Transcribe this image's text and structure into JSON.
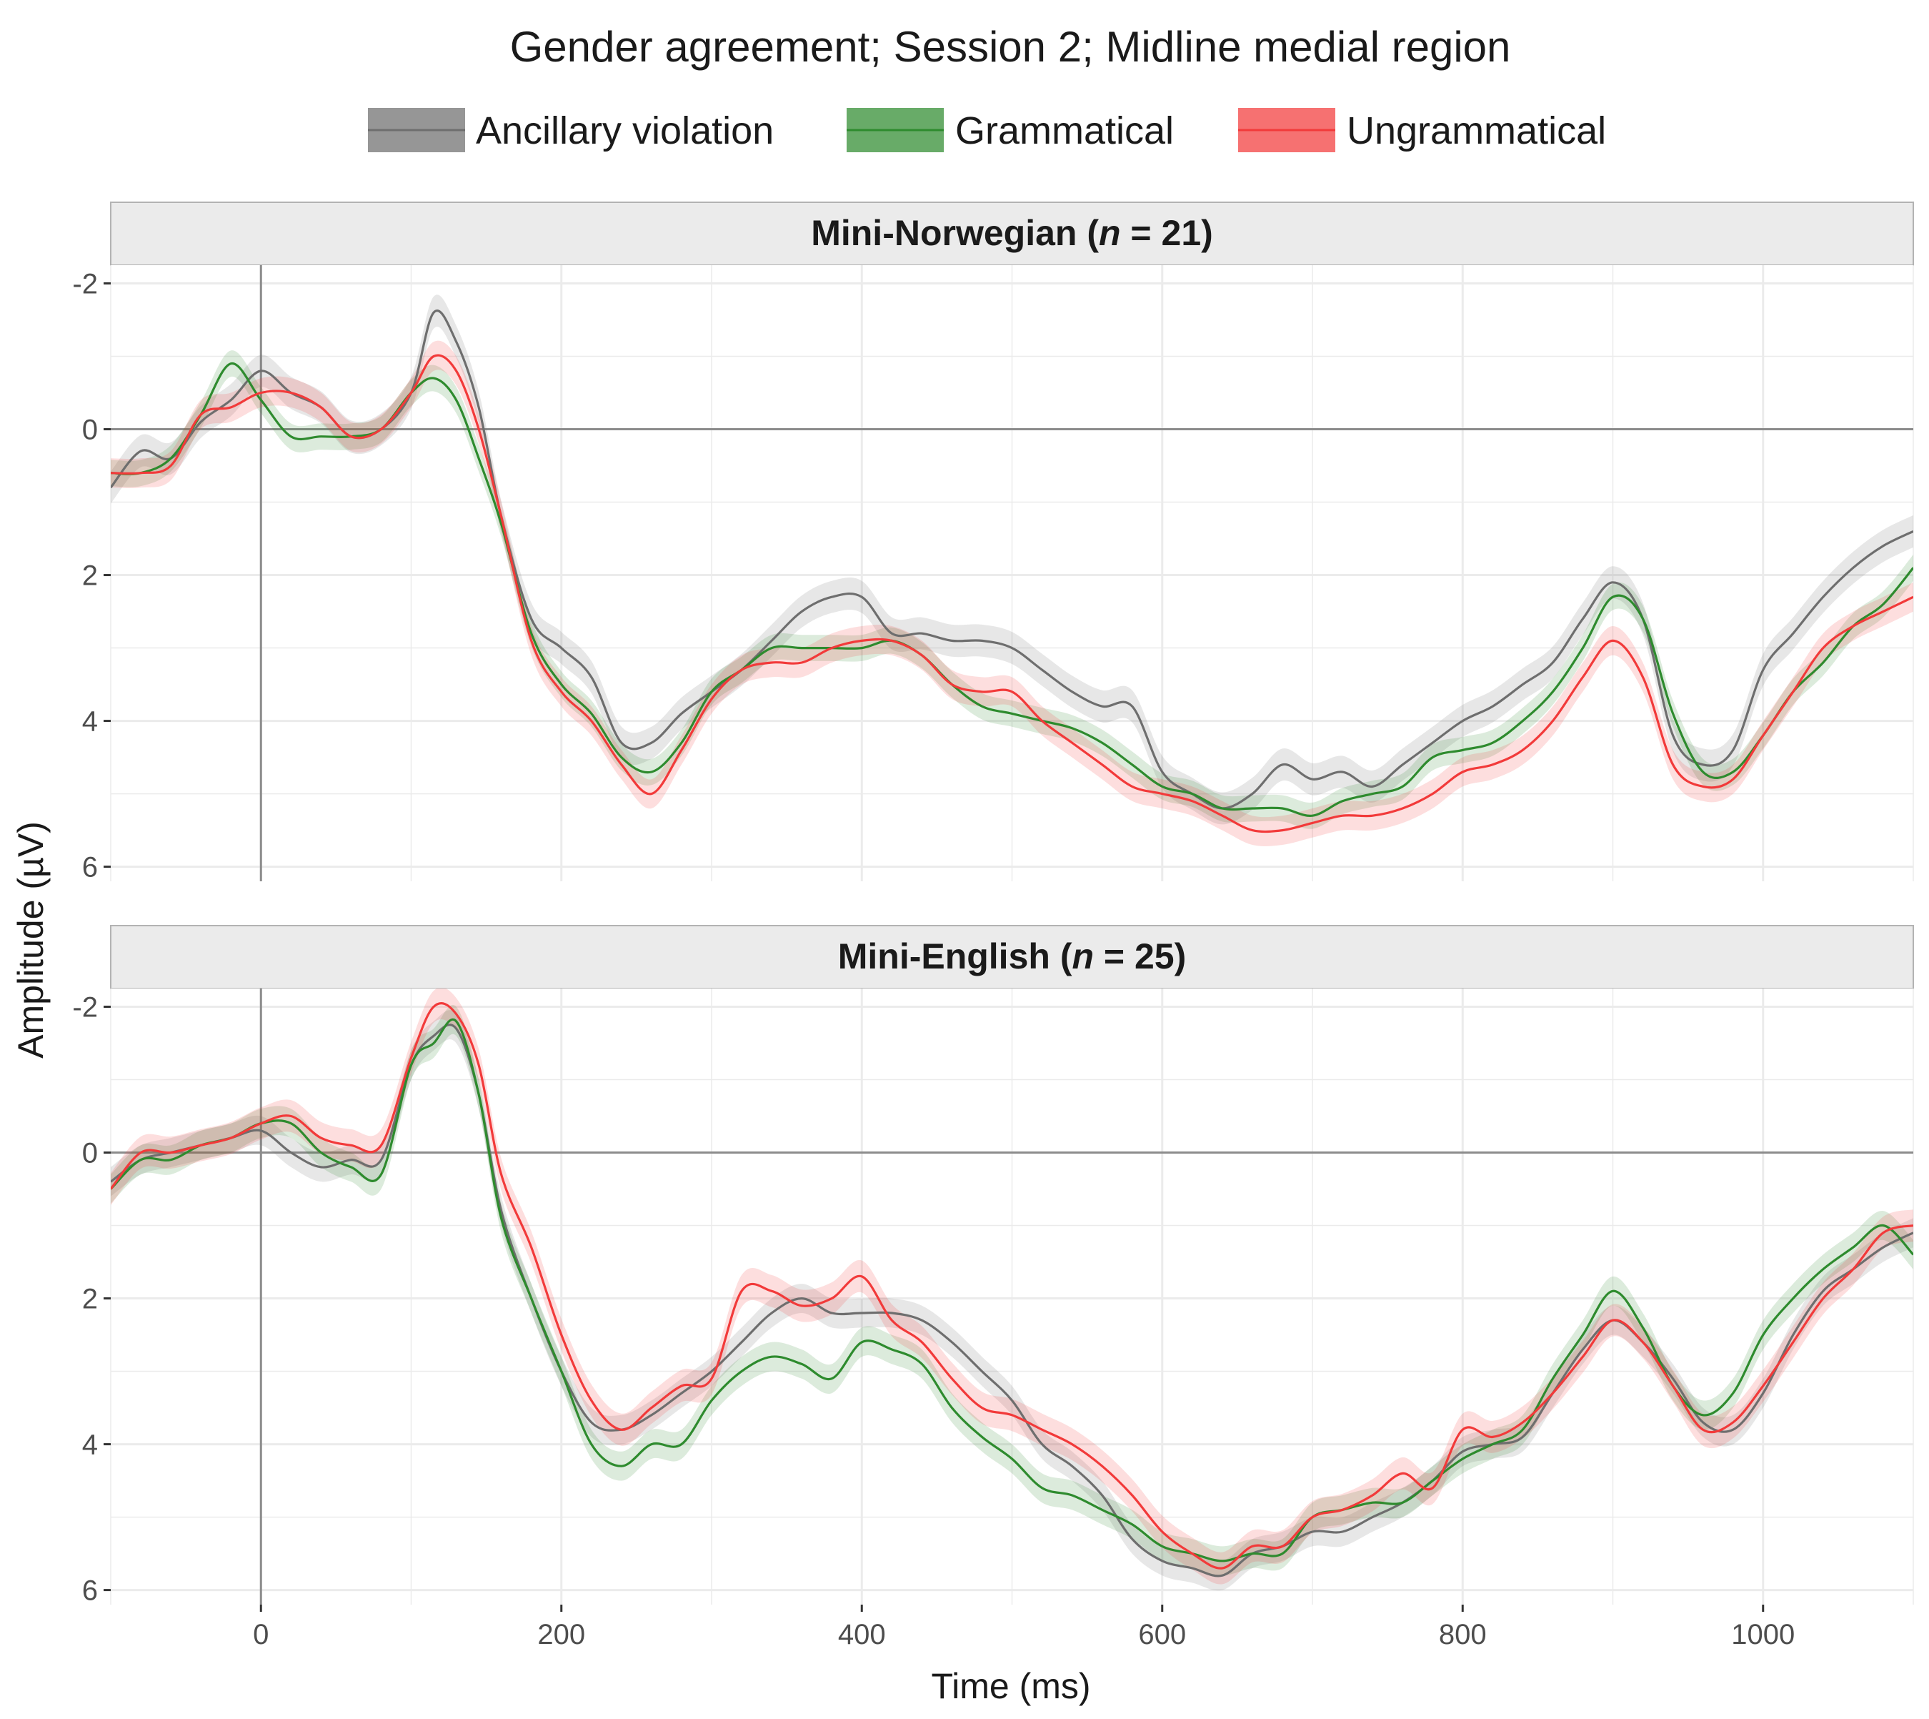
{
  "colors": {
    "ancillary": "#6e6e6e",
    "grammatical": "#2e8b2e",
    "ungrammatical": "#f23a3a",
    "strip_bg": "#ebebeb",
    "grid": "#ebebeb"
  },
  "chart_data": {
    "type": "line",
    "title": "Gender agreement; Session 2; Midline medial region",
    "xlabel": "Time (ms)",
    "ylabel": "Amplitude (µV)",
    "xlim": [
      -100,
      1100
    ],
    "ylim": [
      -2.25,
      6.2
    ],
    "y_reversed": true,
    "x_ticks": [
      0,
      200,
      400,
      600,
      800,
      1000
    ],
    "x_tick_labels": [
      "0",
      "200",
      "400",
      "600",
      "800",
      "1000"
    ],
    "y_ticks": [
      -2,
      0,
      2,
      4,
      6
    ],
    "y_tick_labels": [
      "-2",
      "0",
      "2",
      "4",
      "6"
    ],
    "grid": true,
    "legend_position": "top",
    "legend": [
      {
        "key": "ancillary",
        "label": "Ancillary violation"
      },
      {
        "key": "grammatical",
        "label": "Grammatical"
      },
      {
        "key": "ungrammatical",
        "label": "Ungrammatical"
      }
    ],
    "panels": [
      {
        "strip_prefix": "Mini-Norwegian (",
        "strip_n": "n",
        "strip_suffix": " = 21)",
        "x": [
          -100,
          -80,
          -60,
          -40,
          -20,
          0,
          20,
          40,
          60,
          80,
          100,
          115,
          130,
          145,
          160,
          180,
          200,
          220,
          240,
          260,
          280,
          300,
          320,
          340,
          360,
          380,
          400,
          420,
          440,
          460,
          480,
          500,
          520,
          540,
          560,
          580,
          600,
          620,
          640,
          660,
          680,
          700,
          720,
          740,
          760,
          780,
          800,
          820,
          840,
          860,
          880,
          900,
          920,
          940,
          960,
          980,
          1000,
          1020,
          1040,
          1060,
          1080,
          1100
        ],
        "series": [
          {
            "key": "ancillary",
            "ci": 0.22,
            "values": [
              0.8,
              0.3,
              0.4,
              -0.1,
              -0.4,
              -0.8,
              -0.5,
              -0.3,
              0.1,
              0.0,
              -0.5,
              -1.6,
              -1.2,
              -0.3,
              1.2,
              2.6,
              3.0,
              3.4,
              4.3,
              4.3,
              3.9,
              3.6,
              3.3,
              2.9,
              2.5,
              2.3,
              2.3,
              2.8,
              2.8,
              2.9,
              2.9,
              3.0,
              3.3,
              3.6,
              3.8,
              3.8,
              4.7,
              5.0,
              5.2,
              5.0,
              4.6,
              4.8,
              4.7,
              4.9,
              4.6,
              4.3,
              4.0,
              3.8,
              3.5,
              3.2,
              2.6,
              2.1,
              2.6,
              4.2,
              4.6,
              4.4,
              3.3,
              2.8,
              2.3,
              1.9,
              1.6,
              1.4
            ]
          },
          {
            "key": "grammatical",
            "ci": 0.18,
            "values": [
              0.6,
              0.6,
              0.4,
              -0.2,
              -0.9,
              -0.4,
              0.1,
              0.1,
              0.1,
              0.0,
              -0.5,
              -0.7,
              -0.4,
              0.4,
              1.3,
              2.8,
              3.5,
              3.9,
              4.5,
              4.7,
              4.3,
              3.6,
              3.3,
              3.0,
              3.0,
              3.0,
              3.0,
              2.9,
              3.1,
              3.5,
              3.8,
              3.9,
              4.0,
              4.1,
              4.3,
              4.6,
              4.9,
              5.0,
              5.2,
              5.2,
              5.2,
              5.3,
              5.1,
              5.0,
              4.9,
              4.5,
              4.4,
              4.3,
              4.0,
              3.6,
              3.0,
              2.3,
              2.6,
              3.9,
              4.7,
              4.7,
              4.2,
              3.6,
              3.2,
              2.7,
              2.4,
              1.9
            ]
          },
          {
            "key": "ungrammatical",
            "ci": 0.2,
            "values": [
              0.6,
              0.6,
              0.5,
              -0.2,
              -0.3,
              -0.5,
              -0.5,
              -0.3,
              0.1,
              0.0,
              -0.5,
              -1.0,
              -0.8,
              0.0,
              1.2,
              2.9,
              3.6,
              4.0,
              4.6,
              5.0,
              4.4,
              3.7,
              3.3,
              3.2,
              3.2,
              3.0,
              2.9,
              2.9,
              3.1,
              3.5,
              3.6,
              3.6,
              4.0,
              4.3,
              4.6,
              4.9,
              5.0,
              5.1,
              5.3,
              5.5,
              5.5,
              5.4,
              5.3,
              5.3,
              5.2,
              5.0,
              4.7,
              4.6,
              4.4,
              4.0,
              3.4,
              2.9,
              3.4,
              4.6,
              4.9,
              4.8,
              4.2,
              3.6,
              3.0,
              2.7,
              2.5,
              2.3
            ]
          }
        ]
      },
      {
        "strip_prefix": "Mini-English (",
        "strip_n": "n",
        "strip_suffix": " = 25)",
        "x": [
          -100,
          -80,
          -60,
          -40,
          -20,
          0,
          20,
          40,
          60,
          80,
          100,
          115,
          130,
          145,
          160,
          180,
          200,
          220,
          240,
          260,
          280,
          300,
          320,
          340,
          360,
          380,
          400,
          420,
          440,
          460,
          480,
          500,
          520,
          540,
          560,
          580,
          600,
          620,
          640,
          660,
          680,
          700,
          720,
          740,
          760,
          780,
          800,
          820,
          840,
          860,
          880,
          900,
          920,
          940,
          960,
          980,
          1000,
          1020,
          1040,
          1060,
          1080,
          1100
        ],
        "series": [
          {
            "key": "ancillary",
            "ci": 0.2,
            "values": [
              0.4,
              0.1,
              0.0,
              -0.1,
              -0.2,
              -0.3,
              0.0,
              0.2,
              0.1,
              0.1,
              -1.2,
              -1.6,
              -1.7,
              -0.8,
              0.8,
              2.0,
              3.0,
              3.7,
              3.8,
              3.6,
              3.3,
              3.0,
              2.6,
              2.2,
              2.0,
              2.2,
              2.2,
              2.2,
              2.3,
              2.6,
              3.0,
              3.4,
              4.0,
              4.3,
              4.7,
              5.3,
              5.6,
              5.7,
              5.8,
              5.5,
              5.4,
              5.2,
              5.2,
              5.0,
              4.8,
              4.5,
              4.1,
              4.0,
              3.9,
              3.3,
              2.7,
              2.3,
              2.6,
              3.1,
              3.7,
              3.8,
              3.3,
              2.5,
              1.9,
              1.6,
              1.3,
              1.1
            ]
          },
          {
            "key": "grammatical",
            "ci": 0.2,
            "values": [
              0.5,
              0.1,
              0.1,
              -0.1,
              -0.2,
              -0.4,
              -0.4,
              0.0,
              0.2,
              0.3,
              -1.2,
              -1.5,
              -1.8,
              -0.8,
              0.9,
              2.0,
              3.0,
              4.0,
              4.3,
              4.0,
              4.0,
              3.4,
              3.0,
              2.8,
              2.9,
              3.1,
              2.6,
              2.7,
              2.9,
              3.5,
              3.9,
              4.2,
              4.6,
              4.7,
              4.9,
              5.1,
              5.4,
              5.5,
              5.6,
              5.5,
              5.5,
              5.0,
              4.9,
              4.8,
              4.8,
              4.5,
              4.2,
              4.0,
              3.8,
              3.1,
              2.5,
              1.9,
              2.4,
              3.2,
              3.6,
              3.3,
              2.5,
              2.0,
              1.6,
              1.3,
              1.0,
              1.4
            ]
          },
          {
            "key": "ungrammatical",
            "ci": 0.22,
            "values": [
              0.5,
              0.0,
              0.0,
              -0.1,
              -0.2,
              -0.4,
              -0.5,
              -0.2,
              -0.1,
              -0.1,
              -1.3,
              -2.0,
              -1.9,
              -1.2,
              0.3,
              1.3,
              2.5,
              3.4,
              3.8,
              3.5,
              3.2,
              3.1,
              1.9,
              1.9,
              2.1,
              2.0,
              1.7,
              2.3,
              2.6,
              3.1,
              3.5,
              3.6,
              3.8,
              4.0,
              4.3,
              4.7,
              5.2,
              5.5,
              5.7,
              5.4,
              5.4,
              5.0,
              4.9,
              4.7,
              4.4,
              4.6,
              3.8,
              3.9,
              3.7,
              3.3,
              2.8,
              2.3,
              2.6,
              3.2,
              3.8,
              3.7,
              3.2,
              2.6,
              2.0,
              1.6,
              1.1,
              1.0
            ]
          }
        ]
      }
    ]
  }
}
